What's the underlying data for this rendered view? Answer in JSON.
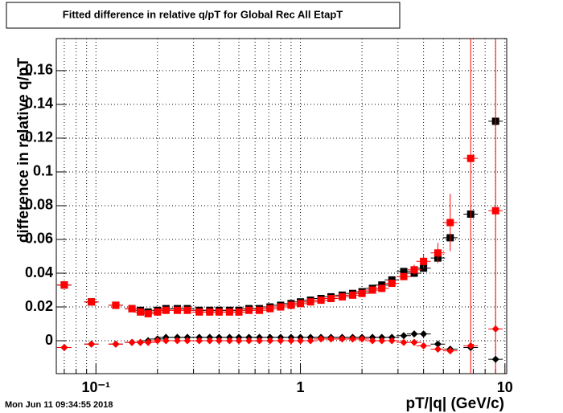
{
  "chart_data": {
    "type": "scatter",
    "title": "Fitted difference in relative q/pT for Global Rec All EtapT",
    "xlabel": "pT/|q| (GeV/c)",
    "ylabel": "difference in relative q/pT",
    "date": "Mon Jun 11 09:34:55 2018",
    "xlog": true,
    "grid": true,
    "xlim": [
      0.064,
      10.2
    ],
    "ylim": [
      -0.0195,
      0.179
    ],
    "xticks": [
      {
        "value": 0.1,
        "label": "10⁻¹"
      },
      1,
      10
    ],
    "xminorticks": [
      0.07,
      0.08,
      0.09,
      0.2,
      0.3,
      0.4,
      0.5,
      0.6,
      0.7,
      0.8,
      0.9,
      2,
      3,
      4,
      5,
      6,
      7,
      8,
      9
    ],
    "yticks": [
      0,
      0.02,
      0.04,
      0.06,
      0.08,
      0.1,
      0.12,
      0.14,
      0.16
    ],
    "x": [
      0.07,
      0.095,
      0.125,
      0.15,
      0.165,
      0.18,
      0.2,
      0.22,
      0.25,
      0.28,
      0.32,
      0.36,
      0.4,
      0.45,
      0.5,
      0.56,
      0.63,
      0.71,
      0.8,
      0.9,
      1.0,
      1.12,
      1.26,
      1.41,
      1.6,
      1.8,
      2.0,
      2.25,
      2.5,
      2.8,
      3.2,
      3.6,
      4.0,
      4.7,
      5.4,
      6.8,
      9.0
    ],
    "series": [
      {
        "name": "black-squares",
        "color": "#000000",
        "marker": "square",
        "values": [
          0.033,
          0.023,
          0.021,
          0.019,
          0.018,
          0.017,
          0.018,
          0.019,
          0.019,
          0.019,
          0.018,
          0.018,
          0.018,
          0.018,
          0.018,
          0.019,
          0.019,
          0.02,
          0.021,
          0.022,
          0.023,
          0.024,
          0.025,
          0.026,
          0.027,
          0.028,
          0.029,
          0.031,
          0.033,
          0.036,
          0.041,
          0.04,
          0.043,
          0.049,
          0.061,
          0.075,
          0.13
        ]
      },
      {
        "name": "red-squares",
        "color": "#ff0000",
        "marker": "square",
        "values": [
          0.033,
          0.023,
          0.021,
          0.019,
          0.017,
          0.016,
          0.017,
          0.018,
          0.018,
          0.018,
          0.017,
          0.017,
          0.017,
          0.017,
          0.017,
          0.018,
          0.018,
          0.019,
          0.02,
          0.021,
          0.022,
          0.023,
          0.024,
          0.025,
          0.026,
          0.027,
          0.028,
          0.03,
          0.031,
          0.034,
          0.038,
          0.042,
          0.047,
          0.052,
          0.07,
          0.108,
          0.077
        ],
        "errors": [
          0.001,
          0.001,
          0.001,
          0.001,
          0.001,
          0.001,
          0.001,
          0.001,
          0.001,
          0.001,
          0.001,
          0.001,
          0.001,
          0.001,
          0.001,
          0.001,
          0.001,
          0.001,
          0.001,
          0.001,
          0.001,
          0.001,
          0.001,
          0.001,
          0.001,
          0.001,
          0.001,
          0.001,
          0.001,
          0.002,
          0.002,
          0.003,
          0.004,
          0.006,
          0.017,
          0.2,
          0.2
        ]
      },
      {
        "name": "black-diamonds",
        "color": "#000000",
        "marker": "diamond",
        "values": [
          -0.004,
          -0.002,
          -0.002,
          -0.001,
          -0.001,
          0.0,
          0.001,
          0.002,
          0.002,
          0.002,
          0.002,
          0.002,
          0.002,
          0.002,
          0.002,
          0.002,
          0.002,
          0.002,
          0.002,
          0.002,
          0.002,
          0.002,
          0.002,
          0.002,
          0.002,
          0.002,
          0.002,
          0.002,
          0.002,
          0.002,
          0.003,
          0.004,
          0.004,
          -0.002,
          -0.005,
          -0.004,
          -0.011
        ]
      },
      {
        "name": "red-diamonds",
        "color": "#ff0000",
        "marker": "diamond",
        "values": [
          -0.004,
          -0.002,
          -0.002,
          -0.001,
          -0.001,
          -0.001,
          0.0,
          0.0,
          0.0,
          0.0,
          0.0,
          0.0,
          0.0,
          0.0,
          0.0,
          0.0,
          0.0,
          0.0,
          0.0,
          0.0,
          0.0,
          0.0,
          0.001,
          0.001,
          0.001,
          0.001,
          0.001,
          0.0,
          0.0,
          0.0,
          -0.001,
          -0.001,
          -0.003,
          -0.005,
          -0.006,
          -0.003,
          0.007
        ]
      }
    ]
  }
}
